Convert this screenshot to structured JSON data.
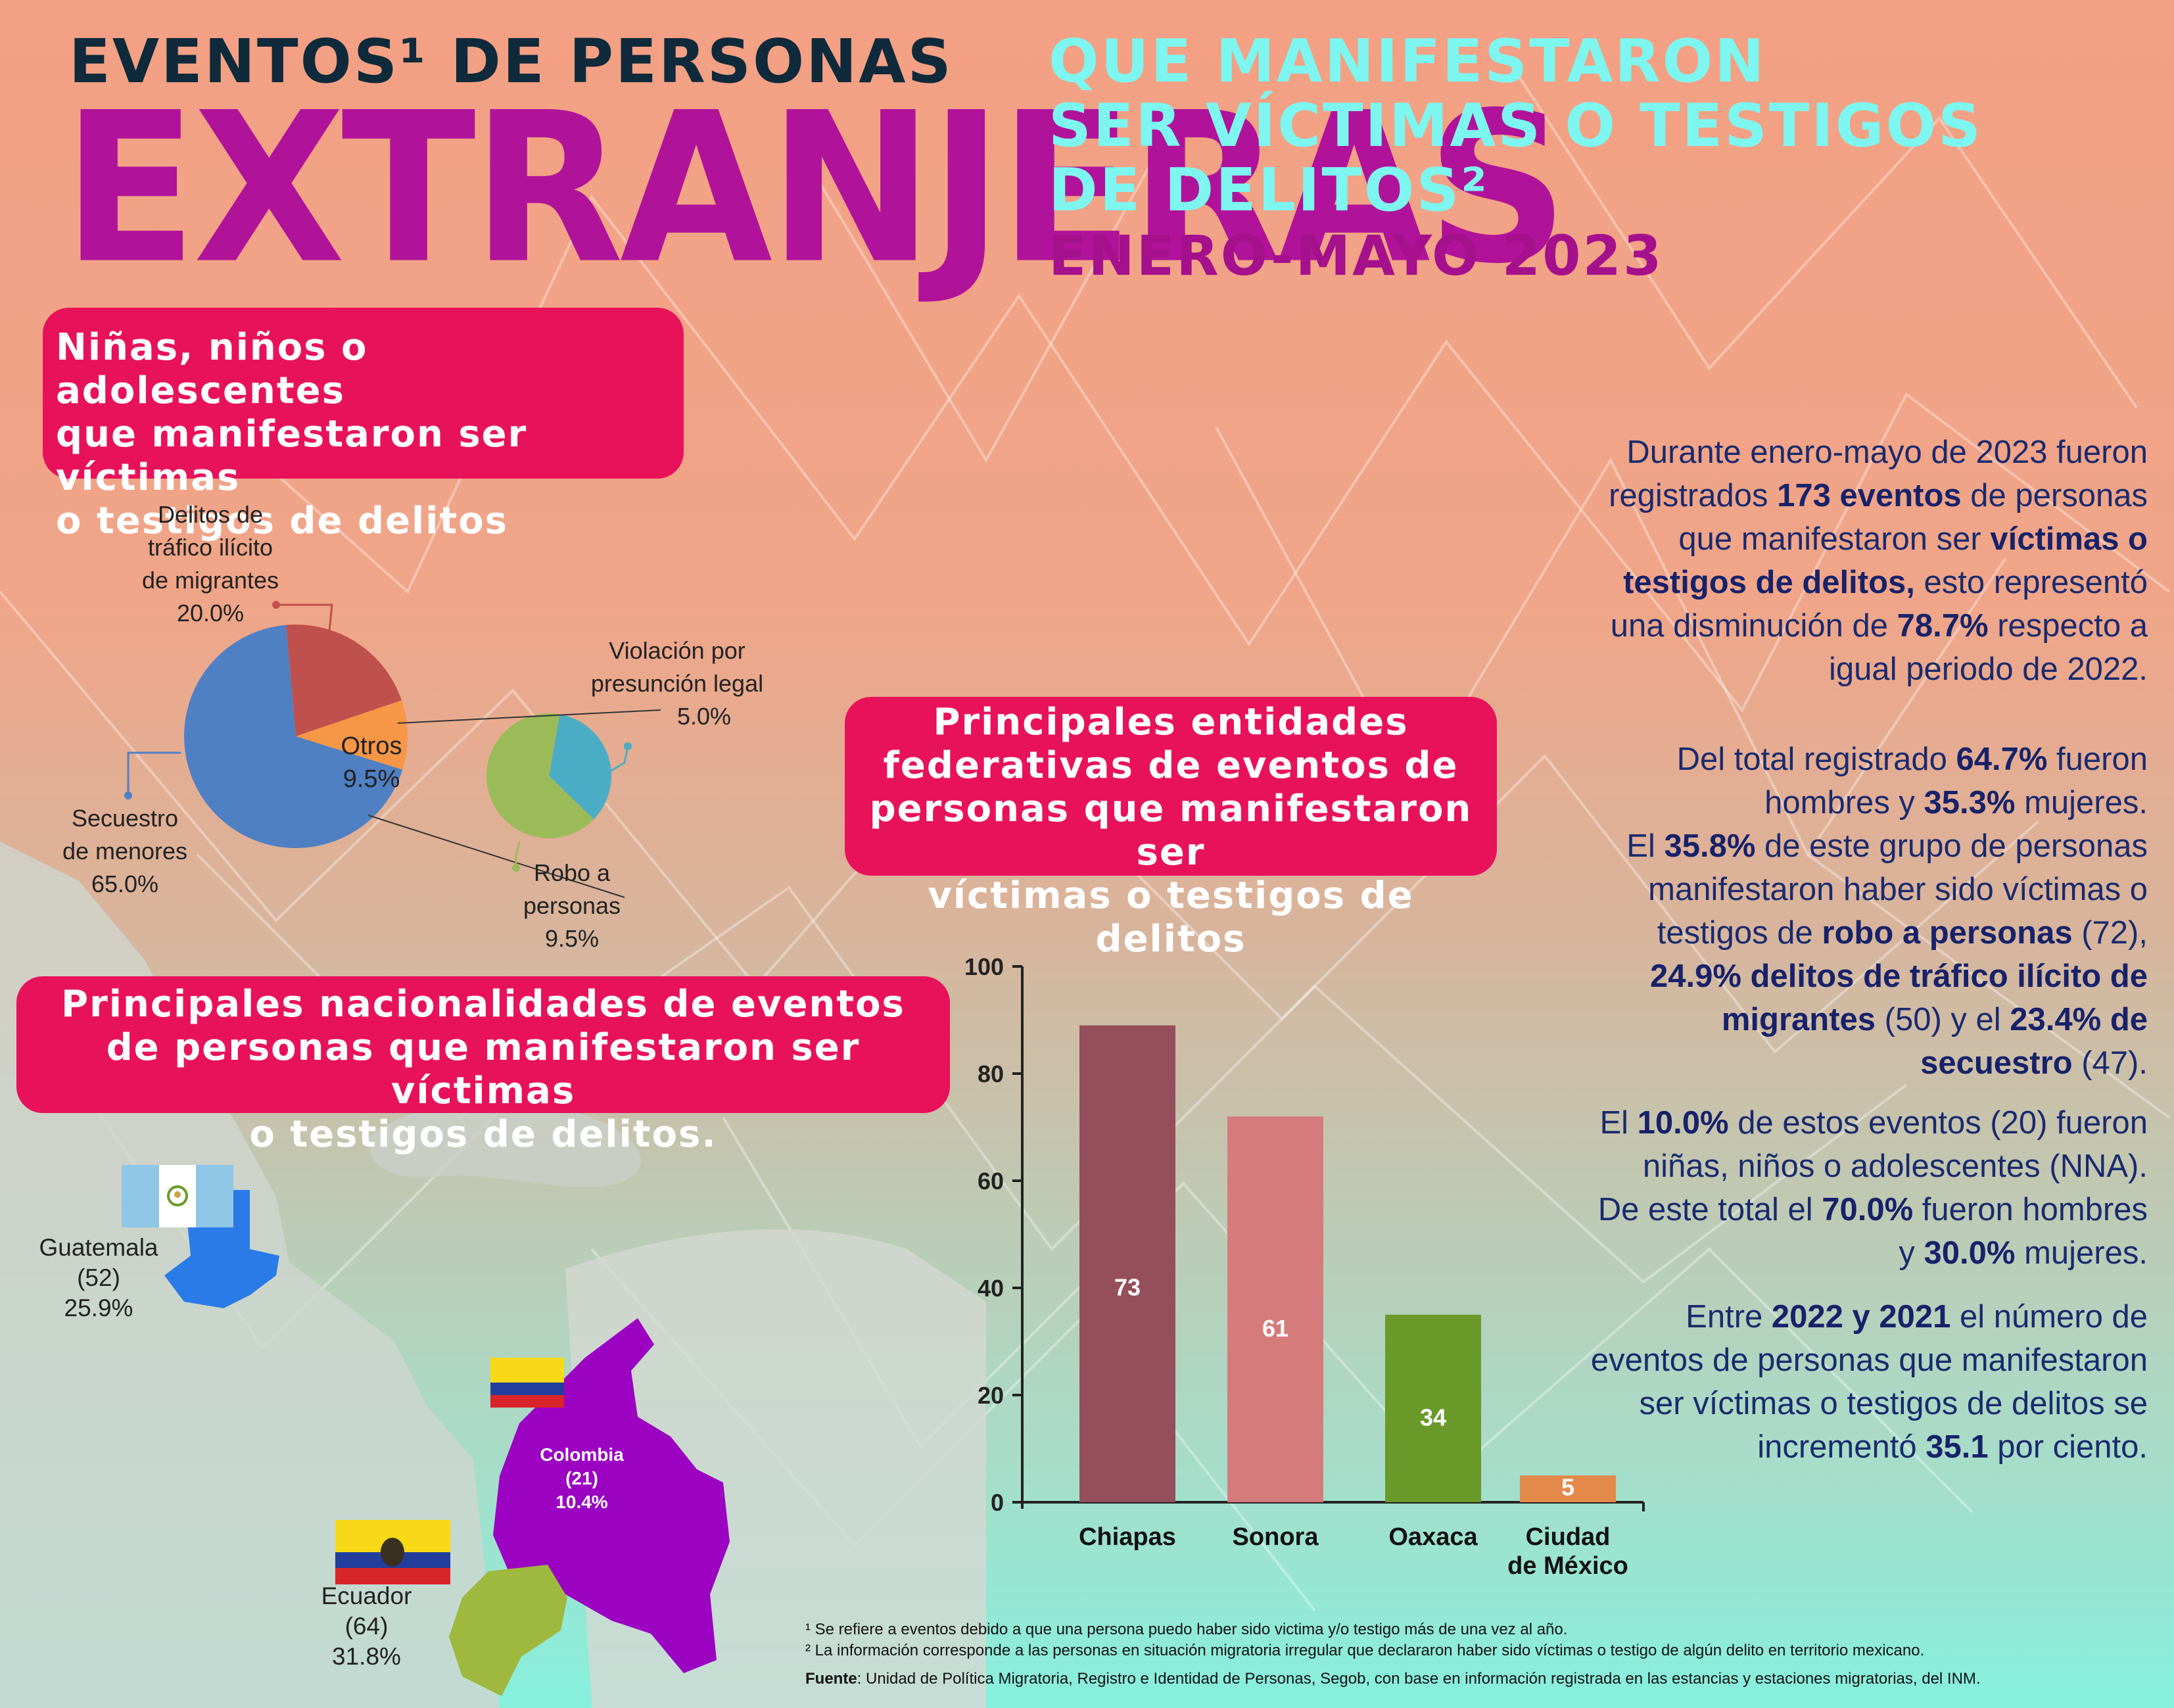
{
  "header": {
    "line1": "EVENTOS¹ DE PERSONAS",
    "line2": "EXTRANJERAS",
    "line3a": "QUE MANIFESTARON",
    "line3b": "SER VÍCTIMAS O TESTIGOS",
    "line3c": "DE DELITOS²",
    "period": "ENERO-MAYO 2023"
  },
  "colors": {
    "title_dark": "#0f2a3a",
    "title_magenta": "#b0139a",
    "title_cyan": "#7ef6f0",
    "pill_red": "#e8125b",
    "text_navy": "#1a2a6e"
  },
  "pill_nna": [
    "Niñas, niños o adolescentes",
    "que manifestaron ser víctimas",
    "o testigos de delitos"
  ],
  "pill_entities": [
    "Principales entidades",
    "federativas de eventos de",
    "personas que manifestaron ser",
    "víctimas o testigos de delitos"
  ],
  "pill_nationalities": [
    "Principales nacionalidades de eventos",
    "de personas que manifestaron ser víctimas",
    "o testigos de delitos."
  ],
  "pie_labels": {
    "trafico": [
      "Delitos de",
      "tráfico ilícito",
      "de migrantes",
      "20.0%"
    ],
    "secuestro": [
      "Secuestro",
      "de menores",
      "65.0%"
    ],
    "otros": [
      "Otros",
      "9.5%"
    ],
    "violacion": [
      "Violación por",
      "presunción legal",
      "5.0%"
    ],
    "robo": [
      "Robo a",
      "personas",
      "9.5%"
    ]
  },
  "right_paragraphs": {
    "p1": [
      [
        "Durante enero-mayo de 2023  fueron"
      ],
      [
        "registrados ",
        {
          "b": "173 eventos"
        },
        " de personas"
      ],
      [
        "que manifestaron ser ",
        {
          "b": "víctimas o"
        }
      ],
      [
        {
          "b": "testigos de delitos,"
        },
        " esto representó"
      ],
      [
        "una disminución de ",
        {
          "b": "78.7%"
        },
        " respecto a"
      ],
      [
        "igual periodo de 2022."
      ]
    ],
    "p2": [
      [
        "Del total registrado ",
        {
          "b": "64.7%"
        },
        " fueron"
      ],
      [
        "hombres y ",
        {
          "b": "35.3%"
        },
        " mujeres."
      ],
      [
        "El ",
        {
          "b": "35.8%"
        },
        " de este grupo de personas"
      ],
      [
        "manifestaron haber sido víctimas o"
      ],
      [
        "testigos de ",
        {
          "b": "robo a personas"
        },
        " (72),"
      ],
      [
        {
          "b": "24.9% delitos de tráfico ilícito de"
        }
      ],
      [
        {
          "b": "migrantes"
        },
        " (50) y el ",
        {
          "b": "23.4% de"
        }
      ],
      [
        {
          "b": "secuestro"
        },
        " (47)."
      ]
    ],
    "p3": [
      [
        "El ",
        {
          "b": "10.0%"
        },
        " de estos eventos (20) fueron"
      ],
      [
        "niñas, niños o adolescentes (NNA)."
      ],
      [
        "De este total el ",
        {
          "b": "70.0%"
        },
        " fueron hombres"
      ],
      [
        "y ",
        {
          "b": "30.0%"
        },
        " mujeres."
      ]
    ],
    "p4": [
      [
        "Entre ",
        {
          "b": "2022 y 2021"
        },
        " el número de"
      ],
      [
        "eventos de personas que manifestaron"
      ],
      [
        "ser víctimas o testigos de delitos se"
      ],
      [
        "incrementó ",
        {
          "b": "35.1"
        },
        " por ciento."
      ]
    ]
  },
  "nationalities": {
    "guatemala": [
      "Guatemala",
      "(52)",
      "25.9%"
    ],
    "colombia": [
      "Colombia",
      "(21)",
      "10.4%"
    ],
    "ecuador": [
      "Ecuador",
      "(64)",
      "31.8%"
    ]
  },
  "footnotes": {
    "f1": "¹ Se refiere a eventos debido a que una persona puedo haber sido victima y/o testigo más de una vez al año.",
    "f2": "² La información corresponde a las personas en situación migratoria irregular que declararon haber sido víctimas o testigo de algún delito en territorio mexicano.",
    "source_label": "Fuente",
    "source_text": ": Unidad de Política Migratoria, Registro e Identidad de Personas, Segob, con base en información registrada en las estancias y estaciones migratorias, del INM."
  },
  "chart_data": [
    {
      "type": "pie",
      "labels": [
        "Secuestro de menores",
        "Delitos de tráfico ilícito de migrantes",
        "Otros"
      ],
      "values": [
        65.0,
        20.0,
        9.5
      ],
      "colors": [
        "#4f80c4",
        "#c0504d",
        "#f79646"
      ]
    },
    {
      "type": "pie",
      "labels": [
        "Violación por presunción legal",
        "Robo a personas"
      ],
      "values": [
        5.0,
        9.5
      ],
      "colors": [
        "#4bacc6",
        "#9bbb59"
      ]
    },
    {
      "type": "bar",
      "categories": [
        "Chiapas",
        "Sonora",
        "Oaxaca",
        "Ciudad de México"
      ],
      "category_lines": [
        [
          "Chiapas"
        ],
        [
          "Sonora"
        ],
        [
          "Oaxaca"
        ],
        [
          "Ciudad",
          "de México"
        ]
      ],
      "values": [
        73,
        61,
        34,
        5
      ],
      "bar_heights": [
        89,
        72,
        35,
        5
      ],
      "colors": [
        "#954f5c",
        "#d67b7c",
        "#6a9a2a",
        "#e38a4a"
      ],
      "ylim": [
        0,
        100
      ],
      "yticks": [
        0,
        20,
        40,
        60,
        80,
        100
      ]
    }
  ]
}
